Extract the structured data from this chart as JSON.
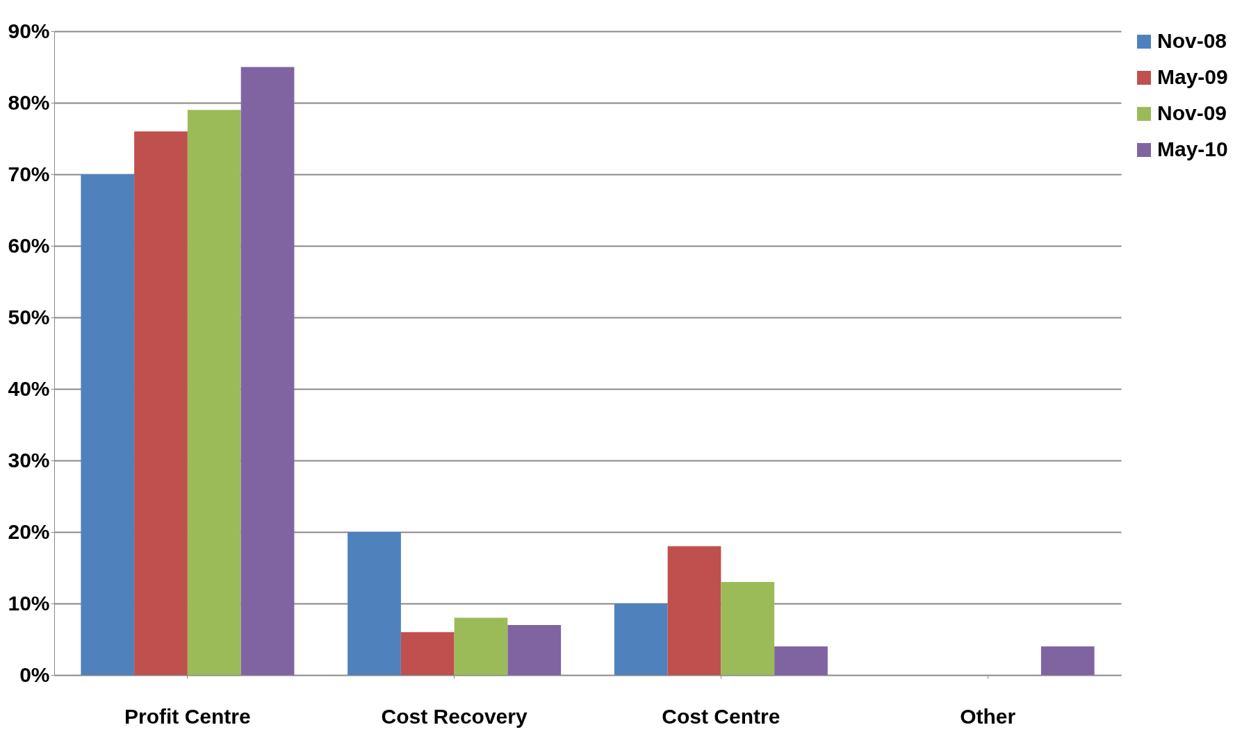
{
  "chart_data": {
    "type": "bar",
    "categories": [
      "Profit Centre",
      "Cost Recovery",
      "Cost Centre",
      "Other"
    ],
    "series": [
      {
        "name": "Nov-08",
        "color": "#4f81bd",
        "values": [
          70,
          20,
          10,
          null
        ]
      },
      {
        "name": "May-09",
        "color": "#c0504d",
        "values": [
          76,
          6,
          18,
          null
        ]
      },
      {
        "name": "Nov-09",
        "color": "#9bbb59",
        "values": [
          79,
          8,
          13,
          null
        ]
      },
      {
        "name": "May-10",
        "color": "#8064a2",
        "values": [
          85,
          7,
          4,
          4
        ]
      }
    ],
    "ylim": [
      0,
      90
    ],
    "yticks": [
      {
        "value": 0,
        "label": "0%"
      },
      {
        "value": 10,
        "label": "10%"
      },
      {
        "value": 20,
        "label": "20%"
      },
      {
        "value": 30,
        "label": "30%"
      },
      {
        "value": 40,
        "label": "40%"
      },
      {
        "value": 50,
        "label": "50%"
      },
      {
        "value": 60,
        "label": "60%"
      },
      {
        "value": 70,
        "label": "70%"
      },
      {
        "value": 80,
        "label": "80%"
      },
      {
        "value": 90,
        "label": "90%"
      }
    ],
    "grid": "y",
    "legend": "right"
  }
}
